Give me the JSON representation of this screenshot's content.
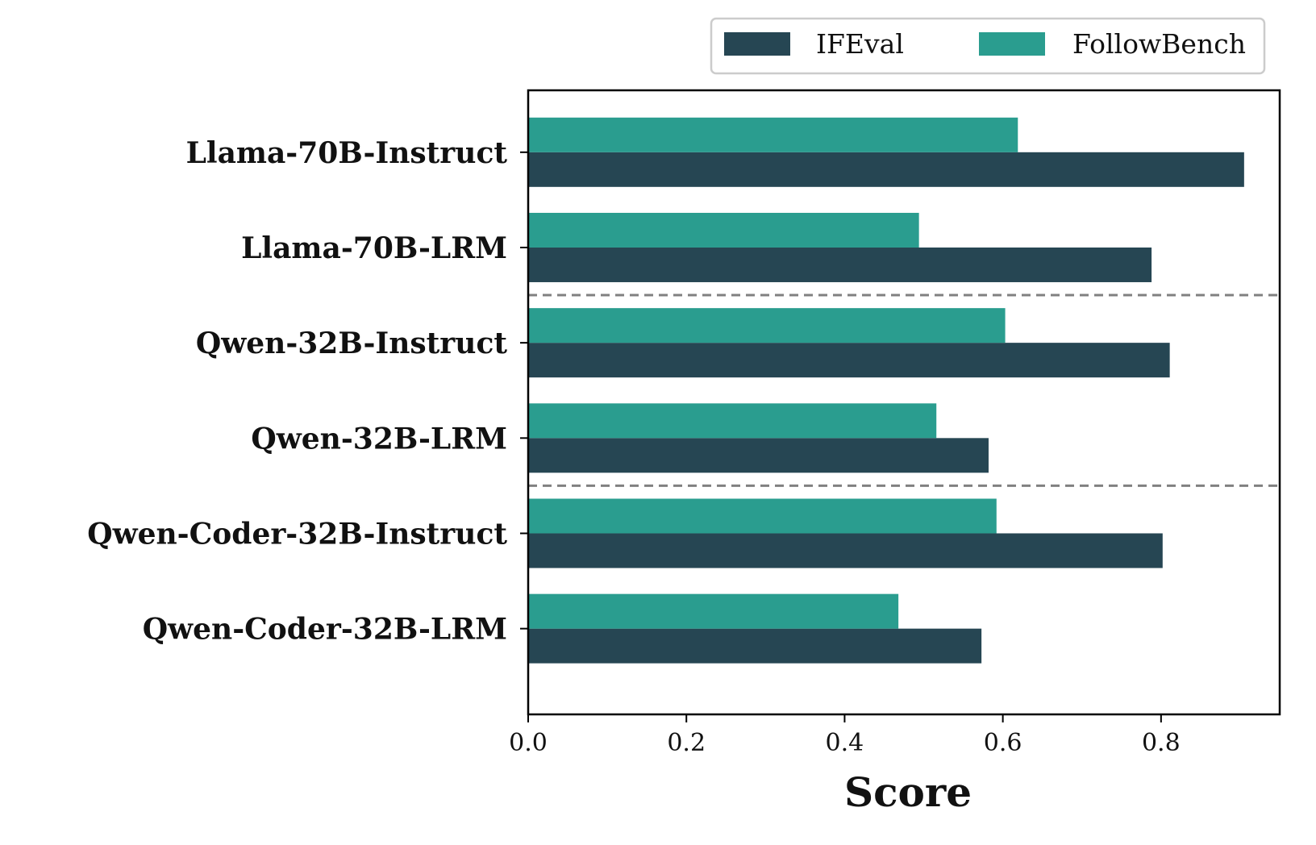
{
  "chart_data": {
    "type": "bar",
    "orientation": "horizontal",
    "categories": [
      "Llama-70B-Instruct",
      "Llama-70B-LRM",
      "Qwen-32B-Instruct",
      "Qwen-32B-LRM",
      "Qwen-Coder-32B-Instruct",
      "Qwen-Coder-32B-LRM"
    ],
    "series": [
      {
        "name": "IFEval",
        "color": "#264653",
        "values": [
          0.905,
          0.788,
          0.811,
          0.582,
          0.802,
          0.573
        ]
      },
      {
        "name": "FollowBench",
        "color": "#2a9d8f",
        "values": [
          0.619,
          0.494,
          0.603,
          0.516,
          0.592,
          0.468
        ]
      }
    ],
    "xlabel": "Score",
    "ylabel": "",
    "xlim": [
      0,
      0.95
    ],
    "xticks": [
      "0.0",
      "0.2",
      "0.4",
      "0.6",
      "0.8"
    ],
    "group_separators_after": [
      1,
      3
    ],
    "separator_color": "#808080",
    "legend_position": "top-right",
    "grid": false
  }
}
